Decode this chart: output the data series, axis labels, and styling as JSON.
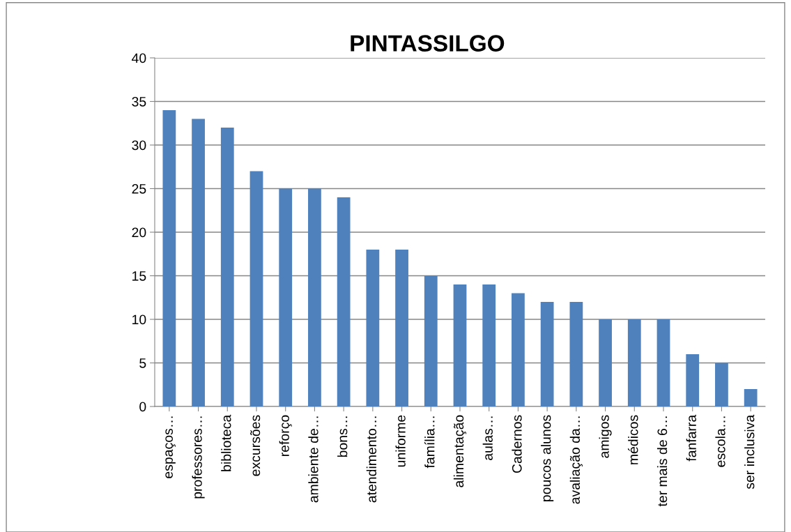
{
  "chart_data": {
    "type": "bar",
    "title": "PINTASSILGO",
    "categories": [
      "espaços…",
      "professores…",
      "biblioteca",
      "excursões",
      "reforço",
      "ambiente de…",
      "bons…",
      "atendimento…",
      "uniforme",
      "família…",
      "alimentação",
      "aulas…",
      "Cadernos",
      "poucos alunos",
      "avaliação da…",
      "amigos",
      "médicos",
      "ter mais de 6…",
      "fanfarra",
      "escola…",
      "ser inclusiva"
    ],
    "values": [
      34,
      33,
      32,
      27,
      25,
      25,
      24,
      18,
      18,
      15,
      14,
      14,
      13,
      12,
      12,
      10,
      10,
      10,
      6,
      5,
      2
    ],
    "color": "#4f81bd",
    "ylim": [
      0,
      40
    ],
    "yticks": [
      0,
      5,
      10,
      15,
      20,
      25,
      30,
      35,
      40
    ],
    "grid": "y"
  }
}
